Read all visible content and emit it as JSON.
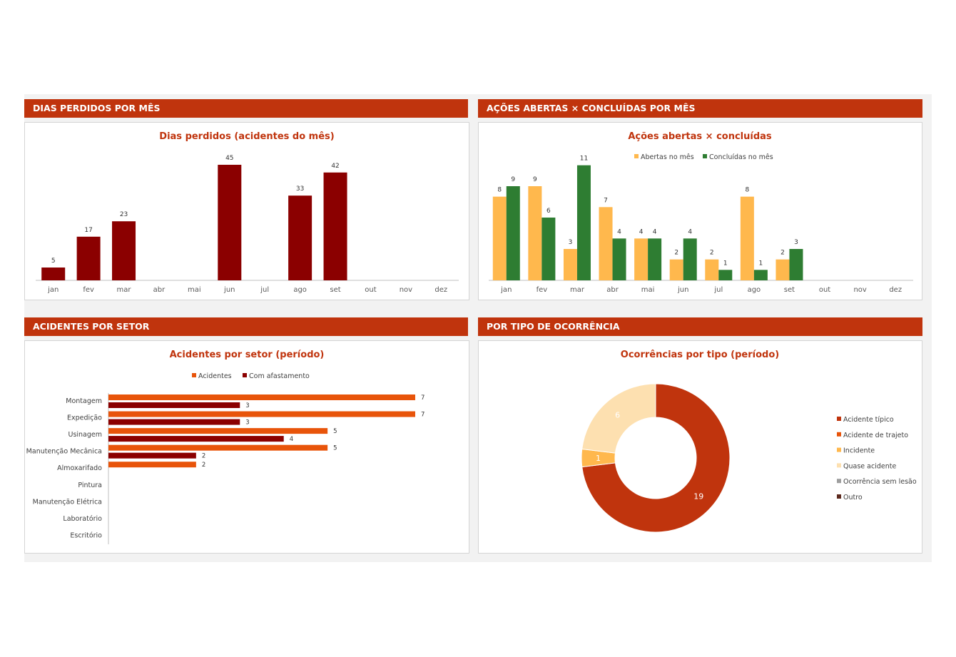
{
  "headers": {
    "dias": "DIAS PERDIDOS POR MÊS",
    "acoes": "AÇÕES ABERTAS × CONCLUÍDAS POR MÊS",
    "setor": "ACIDENTES POR SETOR",
    "tipo": "POR TIPO DE OCORRÊNCIA"
  },
  "colors": {
    "header_bg": "#c0340d",
    "title_text": "#c0340d",
    "dark_red": "#8b0000",
    "amber": "#ffb84d",
    "green": "#2e7d32",
    "orange": "#e8540a"
  },
  "chart_data": [
    {
      "id": "dias",
      "type": "bar",
      "title": "Dias perdidos (acidentes do mês)",
      "categories": [
        "jan",
        "fev",
        "mar",
        "abr",
        "mai",
        "jun",
        "jul",
        "ago",
        "set",
        "out",
        "nov",
        "dez"
      ],
      "values": [
        5,
        17,
        23,
        null,
        null,
        45,
        null,
        33,
        42,
        null,
        null,
        null
      ],
      "data_labels": [
        "5",
        "17",
        "23",
        "",
        "",
        "45",
        "",
        "33",
        "42",
        "",
        "",
        ""
      ],
      "ylim": [
        0,
        50
      ],
      "grid": false,
      "legend": "none"
    },
    {
      "id": "acoes",
      "type": "bar",
      "title": "Ações abertas × concluídas",
      "categories": [
        "jan",
        "fev",
        "mar",
        "abr",
        "mai",
        "jun",
        "jul",
        "ago",
        "set",
        "out",
        "nov",
        "dez"
      ],
      "series": [
        {
          "name": "Abertas no mês",
          "values": [
            8,
            9,
            3,
            7,
            4,
            2,
            2,
            8,
            2,
            null,
            null,
            null
          ],
          "labels": [
            "8",
            "9",
            "3",
            "7",
            "4",
            "2",
            "2",
            "8",
            "2",
            "",
            "",
            ""
          ]
        },
        {
          "name": "Concluídas no mês",
          "values": [
            9,
            6,
            11,
            4,
            4,
            4,
            1,
            1,
            3,
            null,
            null,
            null
          ],
          "labels": [
            "9",
            "6",
            "11",
            "4",
            "4",
            "4",
            "1",
            "1",
            "3",
            "",
            "",
            ""
          ]
        }
      ],
      "ylim": [
        0,
        12
      ],
      "grid": false,
      "legend": "top"
    },
    {
      "id": "setor",
      "type": "bar",
      "orientation": "horizontal",
      "title": "Acidentes por setor (período)",
      "categories": [
        "Montagem",
        "Expedição",
        "Usinagem",
        "Manutenção Mecânica",
        "Almoxarifado",
        "Pintura",
        "Manutenção Elétrica",
        "Laboratório",
        "Escritório"
      ],
      "series": [
        {
          "name": "Acidentes",
          "values": [
            7,
            7,
            5,
            5,
            2,
            null,
            null,
            null,
            null
          ],
          "labels": [
            "7",
            "7",
            "5",
            "5",
            "2",
            "",
            "",
            "",
            ""
          ]
        },
        {
          "name": "Com afastamento",
          "values": [
            3,
            3,
            4,
            2,
            null,
            null,
            null,
            null,
            null
          ],
          "labels": [
            "3",
            "3",
            "4",
            "2",
            "",
            "",
            "",
            "",
            ""
          ]
        }
      ],
      "xlim": [
        0,
        7.5
      ],
      "grid": false,
      "legend": "top"
    },
    {
      "id": "tipo",
      "type": "pie",
      "variant": "donut",
      "title": "Ocorrências por tipo (período)",
      "slices": [
        {
          "name": "Acidente típico",
          "value": 19,
          "label": "19",
          "color": "#c0340d"
        },
        {
          "name": "Acidente de trajeto",
          "value": 0,
          "label": "",
          "color": "#e8540a"
        },
        {
          "name": "Incidente",
          "value": 1,
          "label": "1",
          "color": "#ffb84d"
        },
        {
          "name": "Quase acidente",
          "value": 6,
          "label": "6",
          "color": "#fde0b0"
        },
        {
          "name": "Ocorrência sem lesão",
          "value": 0,
          "label": "",
          "color": "#9e9e9e"
        },
        {
          "name": "Outro",
          "value": 0,
          "label": "",
          "color": "#5d2a1e"
        }
      ],
      "legend": "right"
    }
  ]
}
